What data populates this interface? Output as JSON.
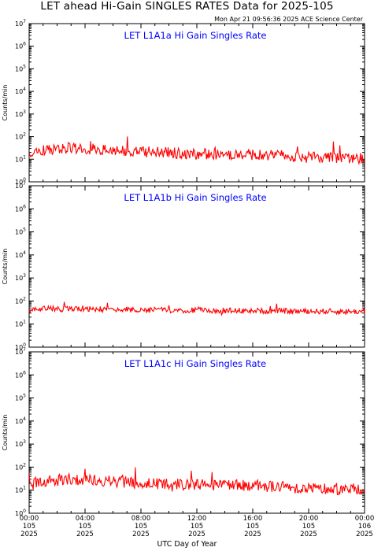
{
  "title": "LET ahead Hi-Gain SINGLES RATES Data for 2025-105",
  "timestamp": "Mon Apr 21 09:56:36 2025 ACE Science Center",
  "xlabel": "UTC Day of Year",
  "colors": {
    "series": "#ff0000",
    "panel_title": "#0000ff",
    "axes": "#000000"
  },
  "chart_data": [
    {
      "type": "line",
      "title": "LET L1A1a Hi Gain Singles Rate",
      "ylabel": "Counts/min",
      "yscale": "log",
      "ylim": [
        1,
        10000000
      ],
      "yticks": [
        "10^0",
        "10^1",
        "10^2",
        "10^3",
        "10^4",
        "10^5",
        "10^6",
        "10^7"
      ],
      "xlim_hours": [
        0,
        24
      ],
      "x_hours": [
        0,
        1,
        2,
        3,
        4,
        5,
        6,
        7,
        8,
        9,
        10,
        11,
        12,
        13,
        14,
        15,
        16,
        17,
        18,
        19,
        20,
        21,
        22,
        23,
        24
      ],
      "values": [
        22,
        26,
        28,
        30,
        29,
        26,
        24,
        22,
        21,
        20,
        19,
        18,
        18,
        17,
        17,
        16,
        16,
        15,
        14,
        13,
        12,
        12,
        11,
        11,
        11
      ]
    },
    {
      "type": "line",
      "title": "LET L1A1b Hi Gain Singles Rate",
      "ylabel": "Counts/min",
      "yscale": "log",
      "ylim": [
        1,
        10000000
      ],
      "yticks": [
        "10^0",
        "10^1",
        "10^2",
        "10^3",
        "10^4",
        "10^5",
        "10^6",
        "10^7"
      ],
      "xlim_hours": [
        0,
        24
      ],
      "x_hours": [
        0,
        1,
        2,
        3,
        4,
        5,
        6,
        7,
        8,
        9,
        10,
        11,
        12,
        13,
        14,
        15,
        16,
        17,
        18,
        19,
        20,
        21,
        22,
        23,
        24
      ],
      "values": [
        42,
        46,
        47,
        46,
        45,
        44,
        43,
        42,
        41,
        41,
        40,
        40,
        40,
        39,
        39,
        38,
        38,
        37,
        37,
        36,
        36,
        36,
        35,
        35,
        35
      ]
    },
    {
      "type": "line",
      "title": "LET L1A1c Hi Gain Singles Rate",
      "ylabel": "Counts/min",
      "yscale": "log",
      "ylim": [
        1,
        10000000
      ],
      "yticks": [
        "10^0",
        "10^1",
        "10^2",
        "10^3",
        "10^4",
        "10^5",
        "10^6",
        "10^7"
      ],
      "xlim_hours": [
        0,
        24
      ],
      "x_hours": [
        0,
        1,
        2,
        3,
        4,
        5,
        6,
        7,
        8,
        9,
        10,
        11,
        12,
        13,
        14,
        15,
        16,
        17,
        18,
        19,
        20,
        21,
        22,
        23,
        24
      ],
      "values": [
        20,
        24,
        27,
        30,
        29,
        26,
        24,
        22,
        21,
        20,
        19,
        18,
        18,
        17,
        17,
        16,
        16,
        15,
        14,
        13,
        12,
        12,
        11,
        11,
        11
      ]
    }
  ],
  "xticks": [
    {
      "time": "00:00",
      "doy": "105",
      "year": "2025",
      "hour": 0
    },
    {
      "time": "04:00",
      "doy": "105",
      "year": "2025",
      "hour": 4
    },
    {
      "time": "08:00",
      "doy": "105",
      "year": "2025",
      "hour": 8
    },
    {
      "time": "12:00",
      "doy": "105",
      "year": "2025",
      "hour": 12
    },
    {
      "time": "16:00",
      "doy": "105",
      "year": "2025",
      "hour": 16
    },
    {
      "time": "20:00",
      "doy": "105",
      "year": "2025",
      "hour": 20
    },
    {
      "time": "00:00",
      "doy": "106",
      "year": "2025",
      "hour": 24
    }
  ]
}
